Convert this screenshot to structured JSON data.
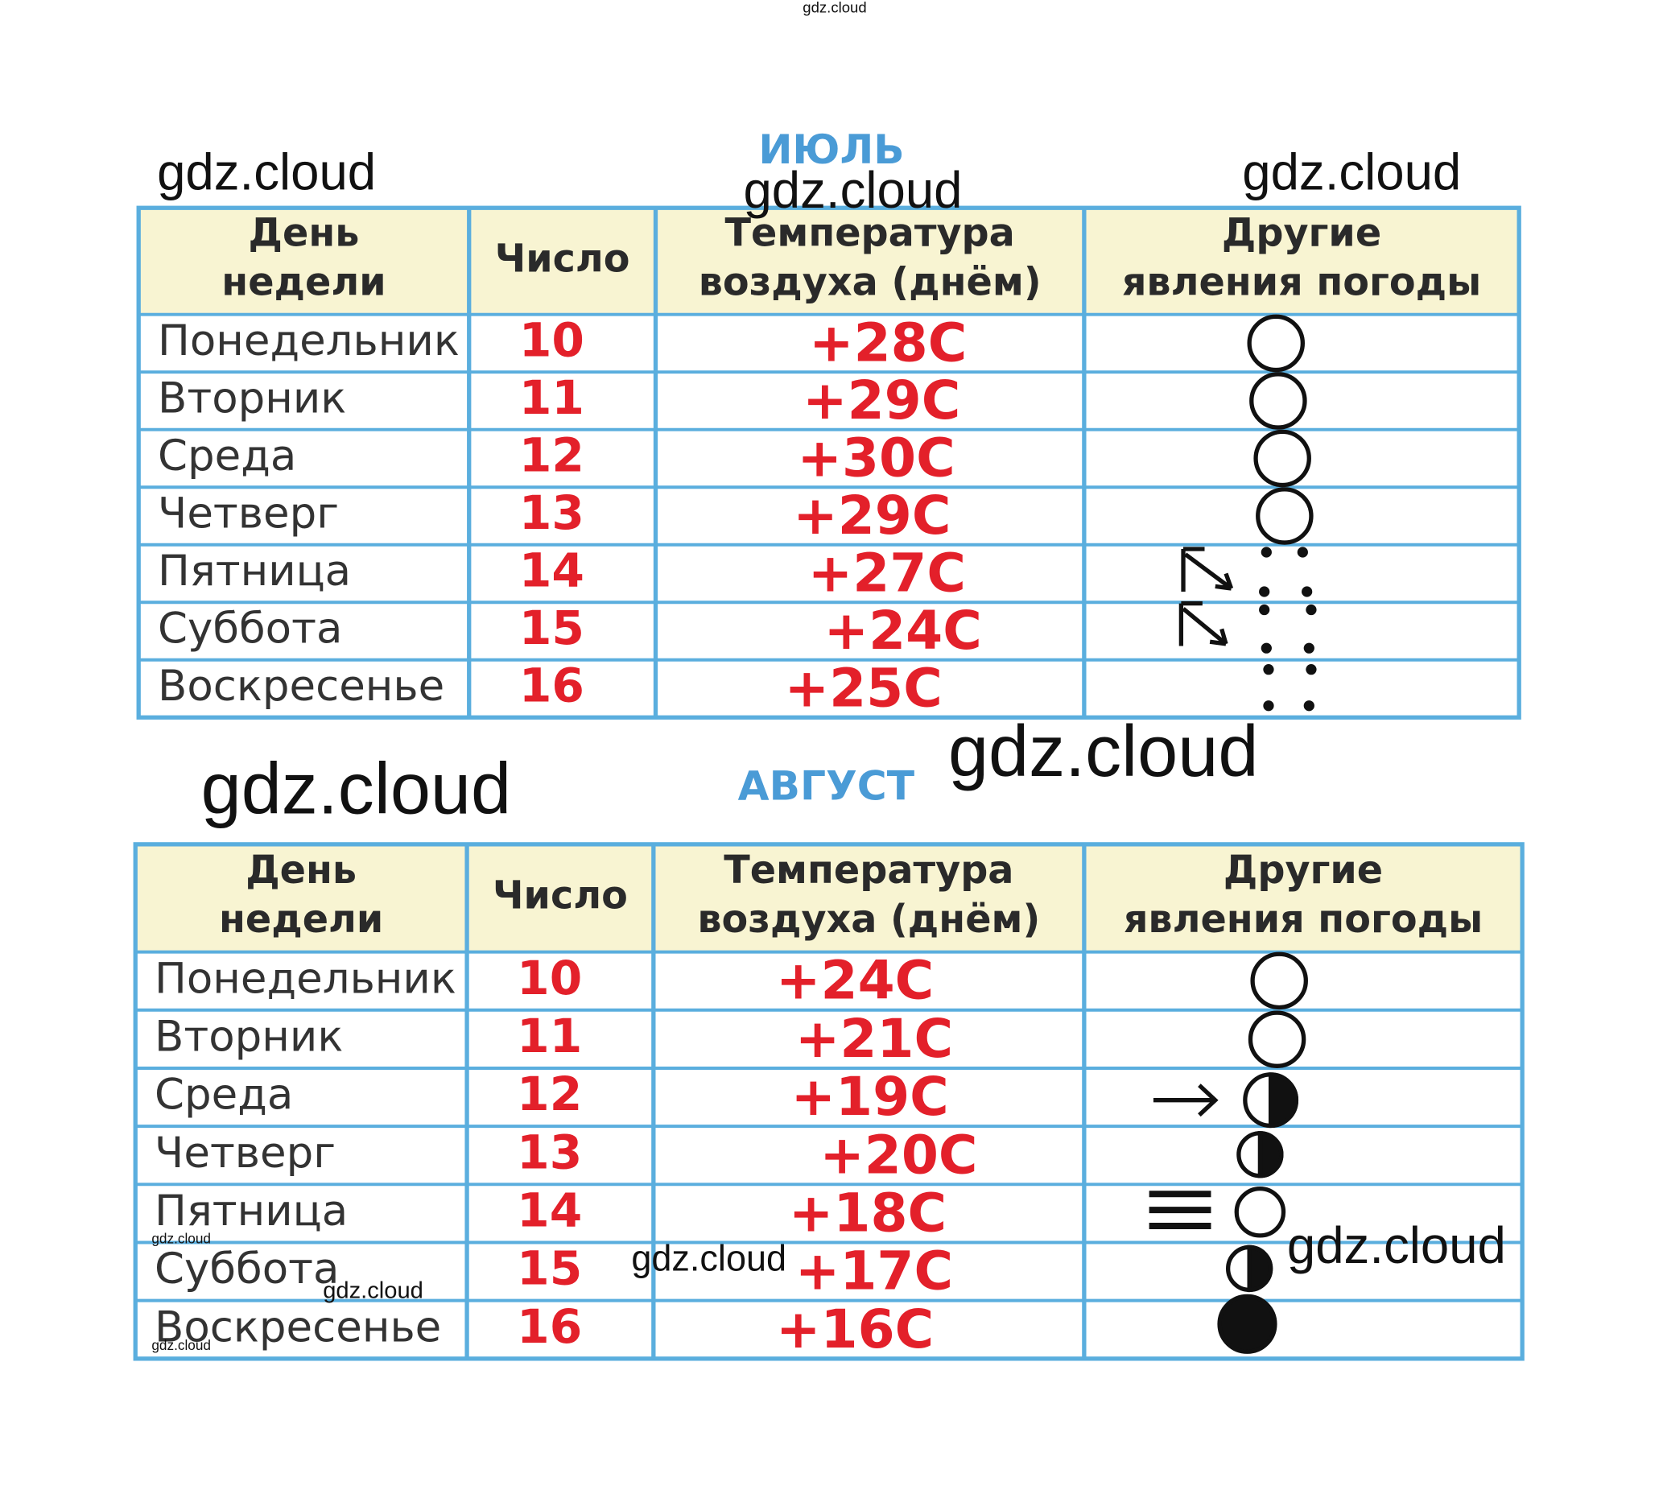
{
  "watermarks": [
    "gdz.cloud",
    "gdz.cloud",
    "gdz.cloud",
    "gdz.cloud",
    "gdz.cloud",
    "gdz.cloud",
    "gdz.cloud",
    "gdz.cloud",
    "gdz.cloud",
    "gdz.cloud",
    "gdz.cloud"
  ],
  "tables": [
    {
      "title": "ИЮЛЬ",
      "header": [
        [
          "День",
          "недели"
        ],
        [
          "Число"
        ],
        [
          "Температура",
          "воздуха (днём)"
        ],
        [
          "Другие",
          "явления погоды"
        ]
      ],
      "rows": [
        [
          "Понедельник",
          "10",
          "+28C"
        ],
        [
          "Вторник",
          "11",
          "+29C"
        ],
        [
          "Среда",
          "12",
          "+30C"
        ],
        [
          "Четверг",
          "13",
          "+29C"
        ],
        [
          "Пятница",
          "14",
          "+27C"
        ],
        [
          "Суббота",
          "15",
          "+24C"
        ],
        [
          "Воскресенье",
          "16",
          "+25C"
        ]
      ]
    },
    {
      "title": "АВГУСТ",
      "header": [
        [
          "День",
          "недели"
        ],
        [
          "Число"
        ],
        [
          "Температура",
          "воздуха (днём)"
        ],
        [
          "Другие",
          "явления погоды"
        ]
      ],
      "rows": [
        [
          "Понедельник",
          "10",
          "+24C"
        ],
        [
          "Вторник",
          "11",
          "+21C"
        ],
        [
          "Среда",
          "12",
          "+19C"
        ],
        [
          "Четверг",
          "13",
          "+20C"
        ],
        [
          "Пятница",
          "14",
          "+18C"
        ],
        [
          "Суббота",
          "15",
          "+17C"
        ],
        [
          "Воскресенье",
          "16",
          "+16C"
        ]
      ]
    }
  ]
}
